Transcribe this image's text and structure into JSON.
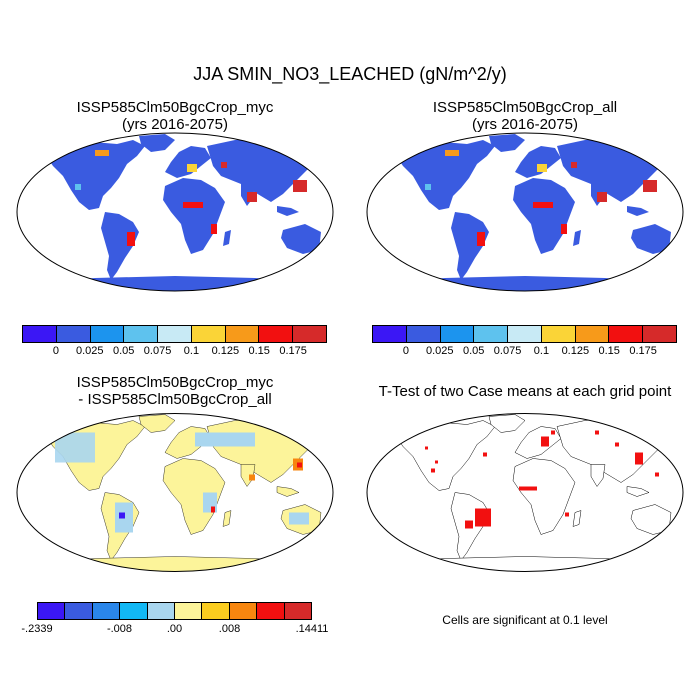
{
  "title": "JJA SMIN_NO3_LEACHED (gN/m^2/y)",
  "panels": {
    "top_left": {
      "title_line1": "ISSP585Clm50BgcCrop_myc",
      "title_line2": "(yrs 2016-2075)"
    },
    "top_right": {
      "title_line1": "ISSP585Clm50BgcCrop_all",
      "title_line2": "(yrs 2016-2075)"
    },
    "bottom_left": {
      "title_line1": "ISSP585Clm50BgcCrop_myc",
      "title_line2": "- ISSP585Clm50BgcCrop_all"
    },
    "bottom_right": {
      "title_line1": "T-Test of two Case means at each grid point",
      "note": "Cells are significant at 0.1 level"
    }
  },
  "colorbar_top": {
    "colors": [
      "#3b17f5",
      "#3a5be0",
      "#1c94ee",
      "#5ec2ee",
      "#c8eaf5",
      "#fad437",
      "#f79a1a",
      "#f21010",
      "#d62a2a"
    ],
    "labels": [
      "0",
      "0.025",
      "0.05",
      "0.075",
      "0.1",
      "0.125",
      "0.15",
      "0.175"
    ]
  },
  "colorbar_bottom": {
    "colors": [
      "#3b17f5",
      "#3a5be0",
      "#2a86ea",
      "#12b8f5",
      "#a9d6ef",
      "#fcf49a",
      "#fbcd1f",
      "#f7860f",
      "#f21010",
      "#d62a2a"
    ],
    "labels": [
      {
        "text": "-.2339",
        "boundary": 0
      },
      {
        "text": "-.008",
        "boundary": 3
      },
      {
        "text": ".00",
        "boundary": 5
      },
      {
        "text": ".008",
        "boundary": 7
      },
      {
        "text": ".14411",
        "boundary": 10
      }
    ]
  },
  "map_colors": {
    "background_top": "#3a5be0",
    "background_diff": "#fcf49a",
    "diff_negative": "#a9d6ef",
    "significant": "#f21010"
  }
}
